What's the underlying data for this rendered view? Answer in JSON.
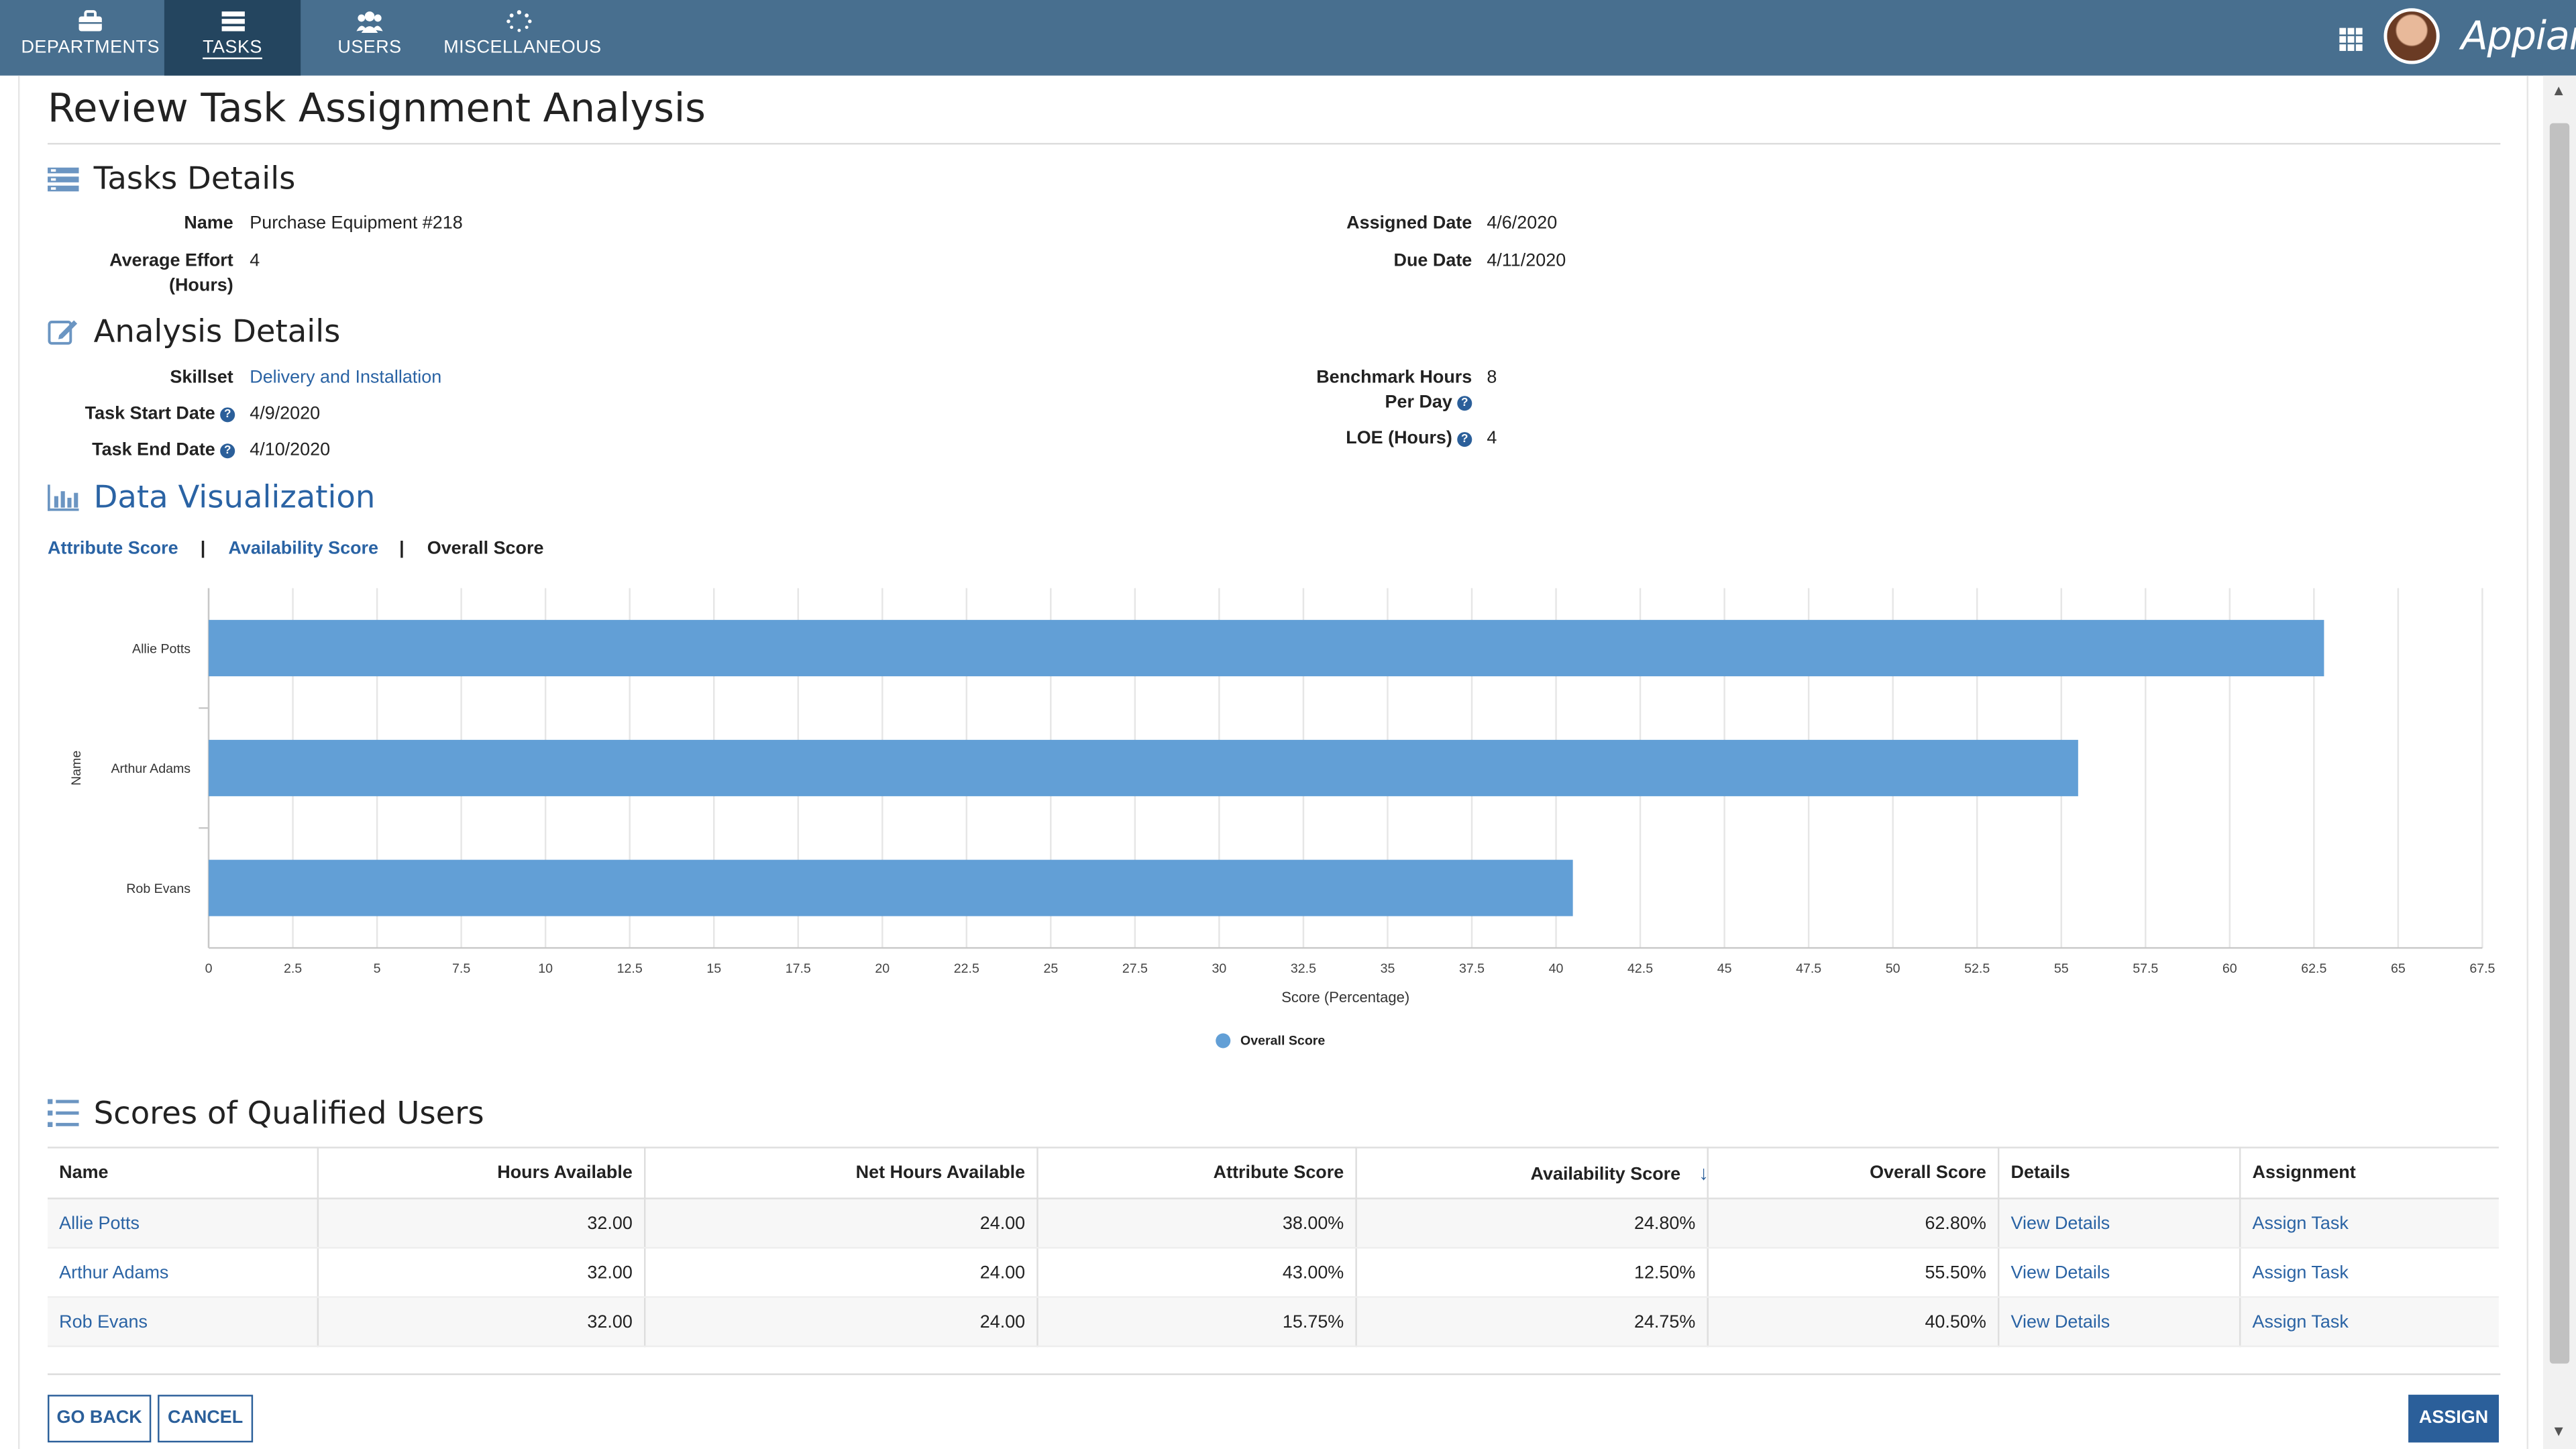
{
  "nav": {
    "tabs": [
      {
        "label": "DEPARTMENTS",
        "icon": "briefcase-icon"
      },
      {
        "label": "TASKS",
        "icon": "tasks-icon",
        "active": true
      },
      {
        "label": "USERS",
        "icon": "users-icon"
      },
      {
        "label": "MISCELLANEOUS",
        "icon": "spinner-icon"
      }
    ],
    "brand": "Appian",
    "nav_color": "#486f8f",
    "active_color": "#24455f"
  },
  "page_title": "Review Task Assignment Analysis",
  "tasks_details": {
    "heading": "Tasks Details",
    "name_label": "Name",
    "name_value": "Purchase Equipment #218",
    "effort_label_1": "Average Effort",
    "effort_label_2": "(Hours)",
    "effort_value": "4",
    "assigned_label": "Assigned Date",
    "assigned_value": "4/6/2020",
    "due_label": "Due Date",
    "due_value": "4/11/2020"
  },
  "analysis_details": {
    "heading": "Analysis Details",
    "skillset_label": "Skillset",
    "skillset_value": "Delivery and Installation",
    "start_label": "Task Start Date",
    "start_value": "4/9/2020",
    "end_label": "Task End Date",
    "end_value": "4/10/2020",
    "benchmark_label_1": "Benchmark Hours",
    "benchmark_label_2": "Per Day",
    "benchmark_value": "8",
    "loe_label": "LOE (Hours)",
    "loe_value": "4"
  },
  "data_viz": {
    "heading": "Data Visualization",
    "links": [
      "Attribute Score",
      "Availability Score",
      "Overall Score"
    ],
    "separator": "|"
  },
  "chart_data": {
    "type": "bar",
    "orientation": "horizontal",
    "categories": [
      "Allie Potts",
      "Arthur Adams",
      "Rob Evans"
    ],
    "series": [
      {
        "name": "Overall Score",
        "values": [
          62.8,
          55.5,
          40.5
        ],
        "color": "#629fd6"
      }
    ],
    "xlabel": "Score (Percentage)",
    "ylabel": "Name",
    "xlim": [
      0,
      67.5
    ],
    "xticks": [
      "0",
      "2.5",
      "5",
      "7.5",
      "10",
      "12.5",
      "15",
      "17.5",
      "20",
      "22.5",
      "25",
      "27.5",
      "30",
      "32.5",
      "35",
      "37.5",
      "40",
      "42.5",
      "45",
      "47.5",
      "50",
      "52.5",
      "55",
      "57.5",
      "60",
      "62.5",
      "65",
      "67.5"
    ],
    "grid": true,
    "legend": "bottom"
  },
  "scores": {
    "heading": "Scores of Qualified Users",
    "columns": [
      "Name",
      "Hours Available",
      "Net Hours Available",
      "Attribute Score",
      "Availability Score",
      "Overall Score",
      "Details",
      "Assignment"
    ],
    "rows": [
      {
        "name": "Allie Potts",
        "hours": "32.00",
        "net": "24.00",
        "attr": "38.00%",
        "avail": "24.80%",
        "overall": "62.80%",
        "details": "View Details",
        "assign": "Assign Task"
      },
      {
        "name": "Arthur Adams",
        "hours": "32.00",
        "net": "24.00",
        "attr": "43.00%",
        "avail": "12.50%",
        "overall": "55.50%",
        "details": "View Details",
        "assign": "Assign Task"
      },
      {
        "name": "Rob Evans",
        "hours": "32.00",
        "net": "24.00",
        "attr": "15.75%",
        "avail": "24.75%",
        "overall": "40.50%",
        "details": "View Details",
        "assign": "Assign Task"
      }
    ]
  },
  "buttons": {
    "go_back": "GO BACK",
    "cancel": "CANCEL",
    "assign": "ASSIGN"
  },
  "help_glyph": "?",
  "sort_glyph": "↓"
}
